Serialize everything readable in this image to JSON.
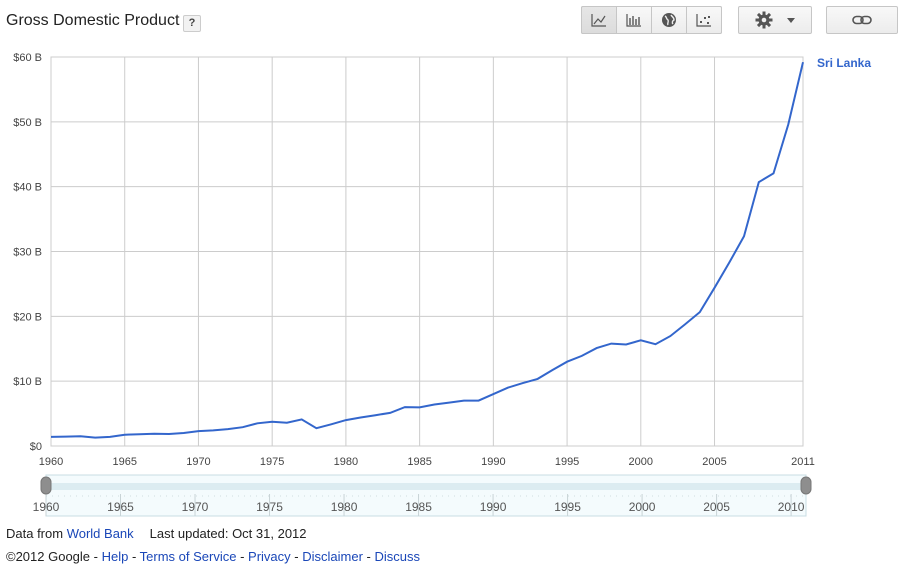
{
  "header": {
    "title": "Gross Domestic Product",
    "help_label": "?"
  },
  "toolbar": {
    "icons": [
      "line-chart-icon",
      "bar-chart-icon",
      "globe-map-icon",
      "scatter-icon",
      "gear-icon",
      "dropdown-arrow-icon",
      "link-icon"
    ],
    "active": "line-chart-icon"
  },
  "chart_data": {
    "type": "line",
    "title": "Gross Domestic Product",
    "xlabel": "",
    "ylabel": "",
    "xlim": [
      1960,
      2011
    ],
    "ylim": [
      0,
      60
    ],
    "y_unit": "B",
    "grid": true,
    "legend_position": "right",
    "y_ticks": [
      "$0",
      "$10 B",
      "$20 B",
      "$30 B",
      "$40 B",
      "$50 B",
      "$60 B"
    ],
    "x_ticks": [
      "1960",
      "1965",
      "1970",
      "1975",
      "1980",
      "1985",
      "1990",
      "1995",
      "2000",
      "2005",
      "2011"
    ],
    "series": [
      {
        "name": "Sri Lanka",
        "color": "#3366cc",
        "x": [
          1960,
          1961,
          1962,
          1963,
          1964,
          1965,
          1966,
          1967,
          1968,
          1969,
          1970,
          1971,
          1972,
          1973,
          1974,
          1975,
          1976,
          1977,
          1978,
          1979,
          1980,
          1981,
          1982,
          1983,
          1984,
          1985,
          1986,
          1987,
          1988,
          1989,
          1990,
          1991,
          1992,
          1993,
          1994,
          1995,
          1996,
          1997,
          1998,
          1999,
          2000,
          2001,
          2002,
          2003,
          2004,
          2005,
          2006,
          2007,
          2008,
          2009,
          2010,
          2011
        ],
        "values": [
          1.4,
          1.45,
          1.5,
          1.3,
          1.4,
          1.75,
          1.8,
          1.9,
          1.85,
          2.0,
          2.3,
          2.4,
          2.6,
          2.9,
          3.5,
          3.75,
          3.6,
          4.1,
          2.75,
          3.35,
          4.0,
          4.4,
          4.75,
          5.1,
          6.0,
          5.95,
          6.4,
          6.7,
          7.0,
          7.0,
          8.0,
          9.0,
          9.7,
          10.35,
          11.7,
          13.0,
          13.9,
          15.1,
          15.8,
          15.65,
          16.3,
          15.7,
          16.95,
          18.75,
          20.65,
          24.4,
          28.3,
          32.35,
          40.7,
          42.05,
          49.6,
          59.2
        ]
      }
    ]
  },
  "range_slider": {
    "ticks": [
      "1960",
      "1965",
      "1970",
      "1975",
      "1980",
      "1985",
      "1990",
      "1995",
      "2000",
      "2005",
      "2010"
    ],
    "start": 1960,
    "end": 2011
  },
  "footer": {
    "data_from": "Data from",
    "source_link": "World Bank",
    "last_updated": "Last updated: Oct 31, 2012",
    "copyright": "©2012 Google",
    "sep": " - ",
    "links": [
      "Help",
      "Terms of Service",
      "Privacy",
      "Disclaimer",
      "Discuss"
    ]
  }
}
